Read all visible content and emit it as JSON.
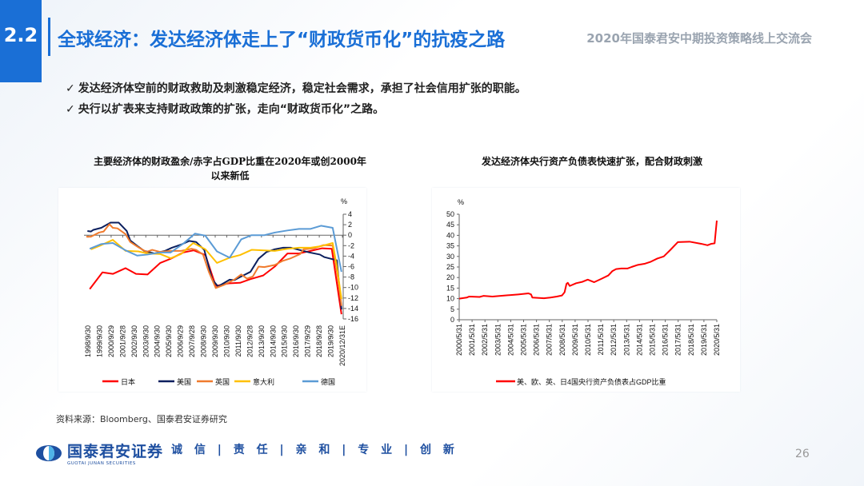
{
  "header": {
    "section": "2.2",
    "title": "全球经济：发达经济体走上了“财政货币化”的抗疫之路",
    "conference": "2020年国泰君安中期投资策略线上交流会"
  },
  "bullets": [
    "发达经济体空前的财政救助及刺激稳定经济，稳定社会需求，承担了社会信用扩张的职能。",
    "央行以扩表来支持财政政策的扩张，走向“财政货币化”之路。"
  ],
  "bullet_icon": "check-icon",
  "source": "资料来源：Bloomberg、国泰君安证券研究",
  "footer": {
    "logo_cn": "国泰君安证券",
    "logo_en": "GUOTAI JUNAN SECURITIES",
    "motto": "诚 信 | 责 任 | 亲 和 | 专 业 | 创 新",
    "page": "26"
  },
  "colors": {
    "accent": "#1a6fd6"
  },
  "chart_data": [
    {
      "type": "line",
      "title": "主要经济体的财政盈余/赤字占GDP比重在2020年或创2000年以来新低",
      "ylabel": "%",
      "ylim": [
        -16,
        4
      ],
      "yticks": [
        4,
        2,
        0,
        -2,
        -4,
        -6,
        -8,
        -10,
        -12,
        -14,
        -16
      ],
      "axis_side": "right",
      "legend": "bottom",
      "xtick_labels": [
        "1998/9/30",
        "1999/9/30",
        "2000/9/29",
        "2001/9/28",
        "2002/9/30",
        "2003/9/30",
        "2004/9/30",
        "2005/9/30",
        "2006/9/29",
        "2007/9/28",
        "2008/9/30",
        "2009/9/30",
        "2010/9/30",
        "2011/9/30",
        "2012/9/28",
        "2013/9/30",
        "2014/9/30",
        "2015/9/30",
        "2016/9/30",
        "2017/9/29",
        "2018/9/28",
        "2019/9/30",
        "2020/12/31E"
      ],
      "series": [
        {
          "name": "日本",
          "color": "#ff0000",
          "points": [
            [
              1998.9,
              -10.3
            ],
            [
              2000.0,
              -7.1
            ],
            [
              2000.9,
              -7.4
            ],
            [
              2002.0,
              -6.3
            ],
            [
              2002.9,
              -7.4
            ],
            [
              2003.9,
              -7.5
            ],
            [
              2005.0,
              -5.3
            ],
            [
              2005.9,
              -4.5
            ],
            [
              2007.0,
              -3.3
            ],
            [
              2007.9,
              -2.9
            ],
            [
              2008.9,
              -3.8
            ],
            [
              2009.8,
              -9.7
            ],
            [
              2010.9,
              -9.2
            ],
            [
              2011.9,
              -9.1
            ],
            [
              2012.8,
              -8.4
            ],
            [
              2013.9,
              -7.7
            ],
            [
              2014.9,
              -6
            ],
            [
              2016.0,
              -3.5
            ],
            [
              2017.0,
              -3.5
            ],
            [
              2018.0,
              -3.0
            ],
            [
              2019.0,
              -2.5
            ],
            [
              2019.85,
              -2.6
            ],
            [
              2020.9,
              -15.1
            ]
          ]
        },
        {
          "name": "美国",
          "color": "#0b1f5e",
          "points": [
            [
              1998.7,
              0.8
            ],
            [
              1999.0,
              0.7
            ],
            [
              1999.2,
              1.0
            ],
            [
              1999.9,
              1.4
            ],
            [
              2000.7,
              2.4
            ],
            [
              2001.4,
              2.4
            ],
            [
              2002.1,
              0.8
            ],
            [
              2002.4,
              -1.0
            ],
            [
              2003.1,
              -2.2
            ],
            [
              2003.6,
              -3.0
            ],
            [
              2004.5,
              -3.5
            ],
            [
              2005.4,
              -3.0
            ],
            [
              2006.0,
              -2.4
            ],
            [
              2006.8,
              -1.8
            ],
            [
              2007.5,
              -1.1
            ],
            [
              2008.1,
              -1.3
            ],
            [
              2008.8,
              -2.8
            ],
            [
              2009.5,
              -8.5
            ],
            [
              2010.0,
              -9.8
            ],
            [
              2011.0,
              -8.5
            ],
            [
              2011.4,
              -8.6
            ],
            [
              2011.9,
              -8.0
            ],
            [
              2012.8,
              -7.0
            ],
            [
              2013.5,
              -4.5
            ],
            [
              2014.2,
              -3.2
            ],
            [
              2014.9,
              -2.7
            ],
            [
              2015.6,
              -2.4
            ],
            [
              2016.3,
              -2.4
            ],
            [
              2017.0,
              -2.8
            ],
            [
              2017.9,
              -3.3
            ],
            [
              2018.8,
              -3.7
            ],
            [
              2019.2,
              -4.2
            ],
            [
              2019.95,
              -4.6
            ],
            [
              2020.4,
              -4.8
            ],
            [
              2020.9,
              -14.2
            ]
          ]
        },
        {
          "name": "英国",
          "color": "#f07b2e",
          "points": [
            [
              1998.6,
              -0.3
            ],
            [
              1999.0,
              -0.3
            ],
            [
              1999.7,
              0.5
            ],
            [
              2000.1,
              0.7
            ],
            [
              2000.6,
              2.1
            ],
            [
              2000.9,
              1.4
            ],
            [
              2001.3,
              1.3
            ],
            [
              2002.0,
              0.2
            ],
            [
              2002.4,
              -1.3
            ],
            [
              2003.1,
              -2.3
            ],
            [
              2003.8,
              -3.2
            ],
            [
              2004.3,
              -2.8
            ],
            [
              2005.0,
              -3.2
            ],
            [
              2005.9,
              -3.0
            ],
            [
              2006.8,
              -3.0
            ],
            [
              2007.7,
              -2.6
            ],
            [
              2008.1,
              -2.8
            ],
            [
              2008.7,
              -3.7
            ],
            [
              2009.2,
              -7
            ],
            [
              2009.8,
              -10.1
            ],
            [
              2010.5,
              -9.5
            ],
            [
              2011.4,
              -8.5
            ],
            [
              2012.0,
              -7.5
            ],
            [
              2012.5,
              -8.3
            ],
            [
              2013.0,
              -7.9
            ],
            [
              2013.5,
              -6.0
            ],
            [
              2014.0,
              -6.1
            ],
            [
              2014.9,
              -5.7
            ],
            [
              2015.6,
              -4.9
            ],
            [
              2016.3,
              -4.4
            ],
            [
              2017.1,
              -3.6
            ],
            [
              2017.4,
              -2.7
            ],
            [
              2018.3,
              -2.5
            ],
            [
              2019.1,
              -1.9
            ],
            [
              2019.95,
              -2.0
            ],
            [
              2020.5,
              -8.0
            ],
            [
              2020.9,
              -13.5
            ]
          ]
        },
        {
          "name": "意大利",
          "color": "#ffc000",
          "points": [
            [
              1999.0,
              -2.7
            ],
            [
              1999.9,
              -1.9
            ],
            [
              2000.9,
              -0.9
            ],
            [
              2002.0,
              -3.0
            ],
            [
              2003.1,
              -3.1
            ],
            [
              2003.9,
              -3.5
            ],
            [
              2005.0,
              -3.6
            ],
            [
              2005.9,
              -4.4
            ],
            [
              2006.8,
              -3.6
            ],
            [
              2007.85,
              -1.5
            ],
            [
              2008.9,
              -2.7
            ],
            [
              2009.9,
              -5.3
            ],
            [
              2011.0,
              -4.3
            ],
            [
              2011.9,
              -3.8
            ],
            [
              2012.9,
              -2.8
            ],
            [
              2014.0,
              -2.9
            ],
            [
              2014.9,
              -3.0
            ],
            [
              2016.0,
              -2.6
            ],
            [
              2017.0,
              -2.4
            ],
            [
              2018.0,
              -2.4
            ],
            [
              2018.9,
              -2.1
            ],
            [
              2019.95,
              -1.5
            ],
            [
              2020.4,
              -6
            ],
            [
              2020.9,
              -12.2
            ]
          ]
        },
        {
          "name": "德国",
          "color": "#5b9bd5",
          "points": [
            [
              1998.9,
              -2.6
            ],
            [
              1999.9,
              -1.7
            ],
            [
              2000.9,
              -1.5
            ],
            [
              2002.0,
              -2.9
            ],
            [
              2003.0,
              -3.9
            ],
            [
              2003.9,
              -3.7
            ],
            [
              2005.0,
              -3.3
            ],
            [
              2005.9,
              -3.3
            ],
            [
              2007.0,
              -1.6
            ],
            [
              2008.0,
              0.3
            ],
            [
              2008.9,
              -0.1
            ],
            [
              2009.9,
              -3.1
            ],
            [
              2011.0,
              -4.3
            ],
            [
              2012.0,
              -0.8
            ],
            [
              2012.9,
              0.0
            ],
            [
              2014.0,
              0.0
            ],
            [
              2014.9,
              0.5
            ],
            [
              2016.0,
              0.9
            ],
            [
              2017.0,
              1.2
            ],
            [
              2018.0,
              1.2
            ],
            [
              2018.9,
              1.8
            ],
            [
              2019.95,
              1.4
            ],
            [
              2020.9,
              -7.0
            ]
          ]
        }
      ]
    },
    {
      "type": "line",
      "title": "发达经济体央行资产负债表快速扩张，配合财政刺激",
      "ylabel": "%",
      "ylim": [
        0,
        50
      ],
      "yticks": [
        50,
        45,
        40,
        35,
        30,
        25,
        20,
        15,
        10,
        5,
        0
      ],
      "legend": "bottom",
      "xtick_labels": [
        "2000/5/31",
        "2001/5/31",
        "2002/5/31",
        "2003/5/31",
        "2004/5/31",
        "2005/5/31",
        "2006/5/31",
        "2007/5/31",
        "2008/5/31",
        "2009/5/31",
        "2010/5/31",
        "2011/5/31",
        "2012/5/31",
        "2013/5/31",
        "2014/5/31",
        "2015/5/31",
        "2016/5/31",
        "2017/5/31",
        "2018/5/31",
        "2019/5/31",
        "2020/5/31"
      ],
      "series": [
        {
          "name": "美、欧、英、日4国央行资产负债表占GDP比重",
          "color": "#ff0000",
          "points": [
            [
              2000.42,
              10
            ],
            [
              2001.0,
              10.5
            ],
            [
              2001.2,
              11
            ],
            [
              2002.0,
              10.8
            ],
            [
              2002.3,
              11.3
            ],
            [
              2003.0,
              11
            ],
            [
              2004.0,
              11.5
            ],
            [
              2005.0,
              12
            ],
            [
              2005.8,
              12.5
            ],
            [
              2006.0,
              12
            ],
            [
              2006.1,
              10.5
            ],
            [
              2007.0,
              10.2
            ],
            [
              2007.5,
              10.5
            ],
            [
              2008.0,
              11
            ],
            [
              2008.4,
              11.5
            ],
            [
              2008.6,
              13
            ],
            [
              2008.75,
              17
            ],
            [
              2008.85,
              17.5
            ],
            [
              2009.0,
              16
            ],
            [
              2009.5,
              17.3
            ],
            [
              2010.0,
              18
            ],
            [
              2010.4,
              19
            ],
            [
              2010.9,
              17.8
            ],
            [
              2011.5,
              19.5
            ],
            [
              2012.0,
              21
            ],
            [
              2012.3,
              23
            ],
            [
              2012.6,
              24
            ],
            [
              2013.0,
              24.3
            ],
            [
              2013.5,
              24.3
            ],
            [
              2013.8,
              25
            ],
            [
              2014.3,
              26
            ],
            [
              2014.8,
              26.5
            ],
            [
              2015.3,
              27.5
            ],
            [
              2015.8,
              29
            ],
            [
              2016.3,
              30
            ],
            [
              2016.8,
              33
            ],
            [
              2017.4,
              36.8
            ],
            [
              2018.3,
              37
            ],
            [
              2019.2,
              36
            ],
            [
              2019.7,
              35.3
            ],
            [
              2020.0,
              36
            ],
            [
              2020.25,
              36.2
            ],
            [
              2020.42,
              47
            ]
          ]
        }
      ]
    }
  ]
}
